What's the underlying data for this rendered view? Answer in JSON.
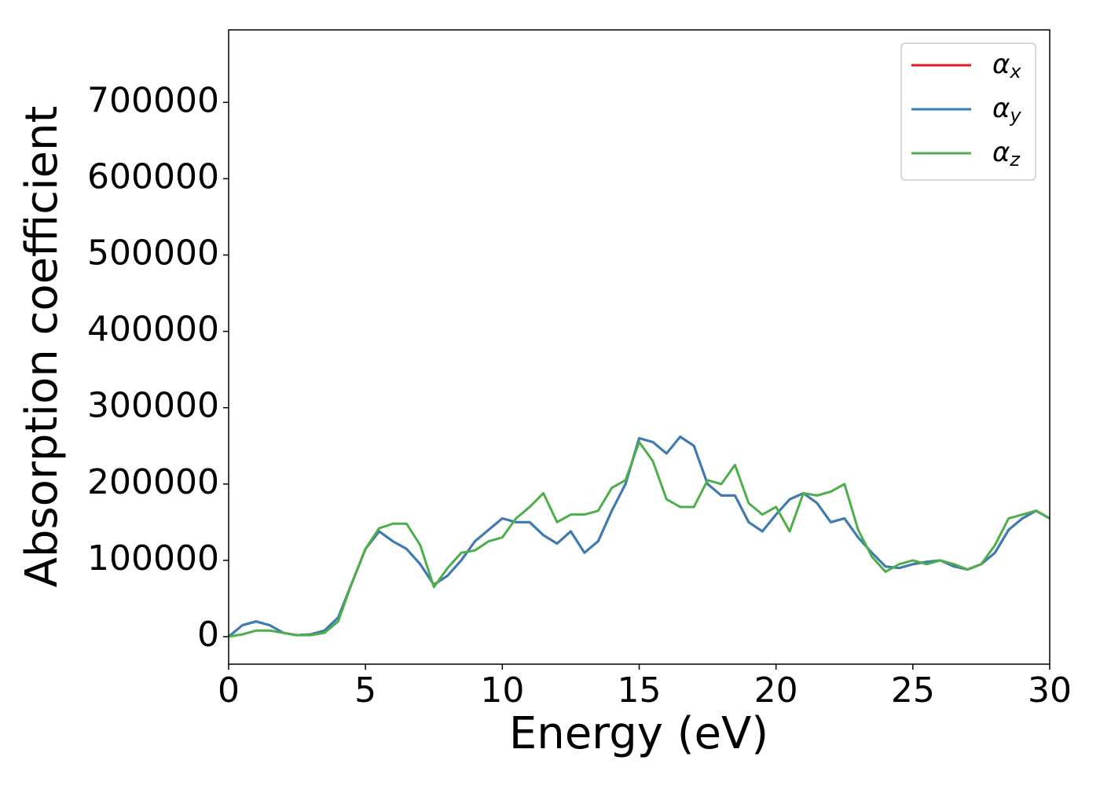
{
  "chart_data": {
    "type": "line",
    "x_label": "Energy (eV)",
    "y_label": "Absorption coefficient",
    "x": [
      0,
      0.5,
      1,
      1.5,
      2,
      2.5,
      3,
      3.5,
      4,
      4.5,
      5,
      5.5,
      6,
      6.5,
      7,
      7.5,
      8,
      8.5,
      9,
      9.5,
      10,
      10.5,
      11,
      11.5,
      12,
      12.5,
      13,
      13.5,
      14,
      14.5,
      15,
      15.5,
      16,
      16.5,
      17,
      17.5,
      18,
      18.5,
      19,
      19.5,
      20,
      20.5,
      21,
      21.5,
      22,
      22.5,
      23,
      23.5,
      24,
      24.5,
      25,
      25.5,
      26,
      26.5,
      27,
      27.5,
      28,
      28.5,
      29,
      29.5,
      30
    ],
    "series": [
      {
        "name": "αx",
        "color": "#e41a1c",
        "values": [
          0,
          15000,
          20000,
          15000,
          5000,
          2000,
          3000,
          8000,
          25000,
          70000,
          115000,
          138000,
          125000,
          115000,
          95000,
          68000,
          80000,
          100000,
          125000,
          140000,
          155000,
          150000,
          150000,
          133000,
          122000,
          138000,
          110000,
          125000,
          165000,
          200000,
          260000,
          255000,
          240000,
          262000,
          250000,
          200000,
          185000,
          185000,
          150000,
          138000,
          160000,
          180000,
          188000,
          175000,
          150000,
          155000,
          130000,
          110000,
          92000,
          90000,
          95000,
          98000,
          100000,
          92000,
          88000,
          95000,
          110000,
          140000,
          155000,
          165000,
          155000
        ]
      },
      {
        "name": "αy",
        "color": "#377eb8",
        "values": [
          0,
          15000,
          20000,
          15000,
          5000,
          2000,
          3000,
          8000,
          25000,
          70000,
          115000,
          138000,
          125000,
          115000,
          95000,
          68000,
          80000,
          100000,
          125000,
          140000,
          155000,
          150000,
          150000,
          133000,
          122000,
          138000,
          110000,
          125000,
          165000,
          200000,
          260000,
          255000,
          240000,
          262000,
          250000,
          200000,
          185000,
          185000,
          150000,
          138000,
          160000,
          180000,
          188000,
          175000,
          150000,
          155000,
          130000,
          110000,
          92000,
          90000,
          95000,
          98000,
          100000,
          92000,
          88000,
          95000,
          110000,
          140000,
          155000,
          165000,
          155000
        ]
      },
      {
        "name": "αz",
        "color": "#4daf4a",
        "values": [
          0,
          3000,
          8000,
          8000,
          5000,
          2000,
          2000,
          5000,
          20000,
          70000,
          115000,
          142000,
          148000,
          148000,
          120000,
          65000,
          90000,
          110000,
          113000,
          125000,
          130000,
          155000,
          170000,
          188000,
          150000,
          160000,
          160000,
          165000,
          195000,
          205000,
          255000,
          230000,
          180000,
          170000,
          170000,
          205000,
          200000,
          225000,
          175000,
          160000,
          170000,
          138000,
          188000,
          185000,
          190000,
          200000,
          140000,
          105000,
          85000,
          95000,
          100000,
          95000,
          100000,
          95000,
          88000,
          95000,
          120000,
          155000,
          160000,
          165000,
          155000
        ]
      }
    ],
    "xlim": [
      0,
      30
    ],
    "xticks": [
      0,
      5,
      10,
      15,
      20,
      25,
      30
    ],
    "ylim": [
      -36000,
      795000
    ],
    "yticks": [
      0,
      100000,
      200000,
      300000,
      400000,
      500000,
      600000,
      700000
    ],
    "legend": "upper right",
    "grid": false
  }
}
